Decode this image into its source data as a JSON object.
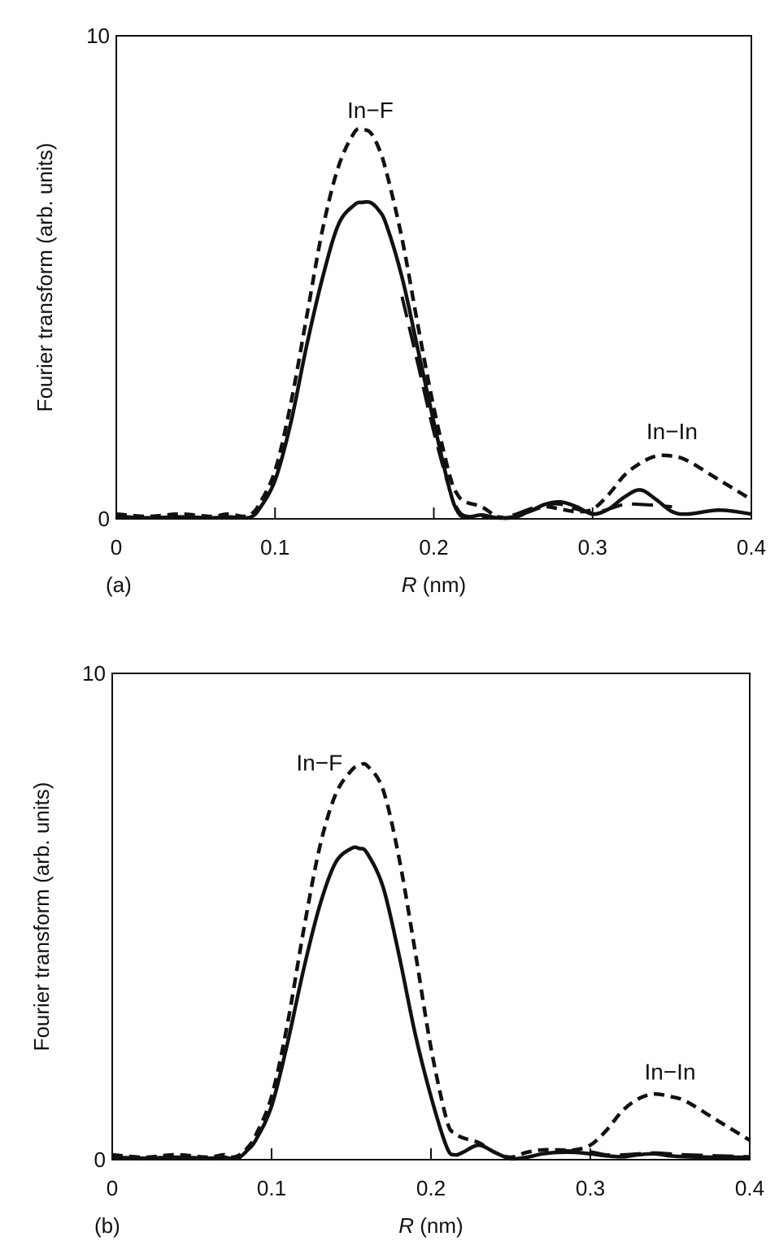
{
  "chart_data": [
    {
      "type": "line",
      "panel_label": "(a)",
      "ylabel": "Fourier transform (arb. units)",
      "xlabel_var": "R",
      "xlabel_unit": " (nm)",
      "xlim": [
        0,
        0.4
      ],
      "ylim": [
        0,
        10
      ],
      "x_ticks": [
        "0",
        "0.1",
        "0.2",
        "0.3",
        "0.4"
      ],
      "y_ticks": [
        "0",
        "10"
      ],
      "grid": false,
      "annotations": [
        {
          "text": "In−F",
          "x": 0.16,
          "y": 8.3
        },
        {
          "text": "In−In",
          "x": 0.35,
          "y": 1.65
        }
      ],
      "series": [
        {
          "style": "solid",
          "x": [
            0,
            0.02,
            0.04,
            0.06,
            0.07,
            0.08,
            0.085,
            0.09,
            0.1,
            0.11,
            0.12,
            0.13,
            0.14,
            0.15,
            0.155,
            0.16,
            0.165,
            0.17,
            0.18,
            0.19,
            0.2,
            0.21,
            0.215,
            0.22,
            0.23,
            0.24,
            0.25,
            0.26,
            0.27,
            0.28,
            0.29,
            0.3,
            0.31,
            0.32,
            0.33,
            0.34,
            0.35,
            0.36,
            0.38,
            0.4
          ],
          "y": [
            0.05,
            0.02,
            0.04,
            0.02,
            0.04,
            0.02,
            0.04,
            0.2,
            0.8,
            2.0,
            3.6,
            5.0,
            6.1,
            6.5,
            6.55,
            6.55,
            6.4,
            6.1,
            5.0,
            3.5,
            2.0,
            0.6,
            0.15,
            0.03,
            0.08,
            0.02,
            0.04,
            0.15,
            0.3,
            0.35,
            0.25,
            0.1,
            0.2,
            0.45,
            0.6,
            0.4,
            0.15,
            0.1,
            0.18,
            0.1
          ]
        },
        {
          "style": "dashed",
          "x": [
            0,
            0.02,
            0.04,
            0.06,
            0.07,
            0.08,
            0.085,
            0.09,
            0.1,
            0.11,
            0.12,
            0.13,
            0.14,
            0.15,
            0.155,
            0.16,
            0.165,
            0.17,
            0.18,
            0.19,
            0.2,
            0.21,
            0.215,
            0.22,
            0.23,
            0.24,
            0.25,
            0.26,
            0.27,
            0.28,
            0.29,
            0.3,
            0.31,
            0.32,
            0.33,
            0.34,
            0.35,
            0.36,
            0.38,
            0.4
          ],
          "y": [
            0.1,
            0.05,
            0.1,
            0.05,
            0.1,
            0.05,
            0.1,
            0.3,
            1.0,
            2.4,
            4.2,
            6.0,
            7.3,
            8.0,
            8.05,
            8.0,
            7.7,
            7.2,
            5.8,
            4.0,
            2.3,
            0.9,
            0.5,
            0.35,
            0.25,
            0.05,
            0.02,
            0.15,
            0.25,
            0.2,
            0.15,
            0.2,
            0.5,
            0.9,
            1.15,
            1.3,
            1.3,
            1.2,
            0.8,
            0.4
          ]
        },
        {
          "style": "long-dashed",
          "x": [
            0.18,
            0.19,
            0.2,
            0.21,
            0.215,
            0.22,
            0.23,
            0.24,
            0.25,
            0.26,
            0.27,
            0.28,
            0.29,
            0.3,
            0.31,
            0.32,
            0.33,
            0.34,
            0.35
          ],
          "y": [
            4.6,
            3.2,
            1.8,
            0.6,
            0.2,
            0.06,
            0.05,
            0.03,
            0.08,
            0.2,
            0.3,
            0.3,
            0.2,
            0.12,
            0.2,
            0.3,
            0.3,
            0.28,
            0.25
          ]
        }
      ]
    },
    {
      "type": "line",
      "panel_label": "(b)",
      "ylabel": "Fourier transform (arb. units)",
      "xlabel_var": "R",
      "xlabel_unit": " (nm)",
      "xlim": [
        0,
        0.4
      ],
      "ylim": [
        0,
        10
      ],
      "x_ticks": [
        "0",
        "0.1",
        "0.2",
        "0.3",
        "0.4"
      ],
      "y_ticks": [
        "0",
        "10"
      ],
      "grid": false,
      "annotations": [
        {
          "text": "In−F",
          "x": 0.13,
          "y": 8.0
        },
        {
          "text": "In−In",
          "x": 0.35,
          "y": 1.65
        }
      ],
      "series": [
        {
          "style": "solid",
          "x": [
            0,
            0.02,
            0.04,
            0.06,
            0.07,
            0.075,
            0.08,
            0.085,
            0.09,
            0.1,
            0.11,
            0.12,
            0.13,
            0.14,
            0.15,
            0.155,
            0.16,
            0.17,
            0.18,
            0.19,
            0.2,
            0.21,
            0.215,
            0.22,
            0.23,
            0.24,
            0.25,
            0.26,
            0.27,
            0.28,
            0.29,
            0.3,
            0.31,
            0.32,
            0.33,
            0.34,
            0.35,
            0.36,
            0.38,
            0.4
          ],
          "y": [
            0.05,
            0.03,
            0.05,
            0.03,
            0.05,
            0.02,
            0.05,
            0.2,
            0.4,
            1.1,
            2.4,
            3.9,
            5.2,
            6.1,
            6.4,
            6.4,
            6.3,
            5.6,
            4.2,
            2.6,
            1.3,
            0.25,
            0.1,
            0.15,
            0.3,
            0.15,
            0.02,
            0.05,
            0.12,
            0.15,
            0.15,
            0.12,
            0.08,
            0.06,
            0.1,
            0.12,
            0.08,
            0.06,
            0.05,
            0.05
          ]
        },
        {
          "style": "dashed",
          "x": [
            0,
            0.02,
            0.04,
            0.06,
            0.07,
            0.075,
            0.08,
            0.085,
            0.09,
            0.1,
            0.11,
            0.12,
            0.13,
            0.14,
            0.15,
            0.155,
            0.16,
            0.17,
            0.18,
            0.19,
            0.2,
            0.21,
            0.215,
            0.22,
            0.23,
            0.24,
            0.25,
            0.26,
            0.27,
            0.28,
            0.29,
            0.3,
            0.31,
            0.32,
            0.33,
            0.34,
            0.35,
            0.36,
            0.38,
            0.4
          ],
          "y": [
            0.1,
            0.05,
            0.1,
            0.05,
            0.1,
            0.05,
            0.1,
            0.25,
            0.5,
            1.3,
            2.8,
            4.7,
            6.4,
            7.5,
            8.0,
            8.1,
            8.1,
            7.6,
            6.2,
            4.3,
            2.3,
            0.8,
            0.55,
            0.45,
            0.35,
            0.15,
            0.05,
            0.15,
            0.2,
            0.2,
            0.2,
            0.3,
            0.6,
            1.0,
            1.25,
            1.35,
            1.3,
            1.2,
            0.8,
            0.4
          ]
        },
        {
          "style": "long-dashed",
          "x": [
            0.28,
            0.29,
            0.3,
            0.31,
            0.32,
            0.33,
            0.34,
            0.35,
            0.36,
            0.38,
            0.4
          ],
          "y": [
            0.18,
            0.18,
            0.16,
            0.1,
            0.1,
            0.12,
            0.14,
            0.12,
            0.1,
            0.08,
            0.06
          ]
        }
      ]
    }
  ]
}
